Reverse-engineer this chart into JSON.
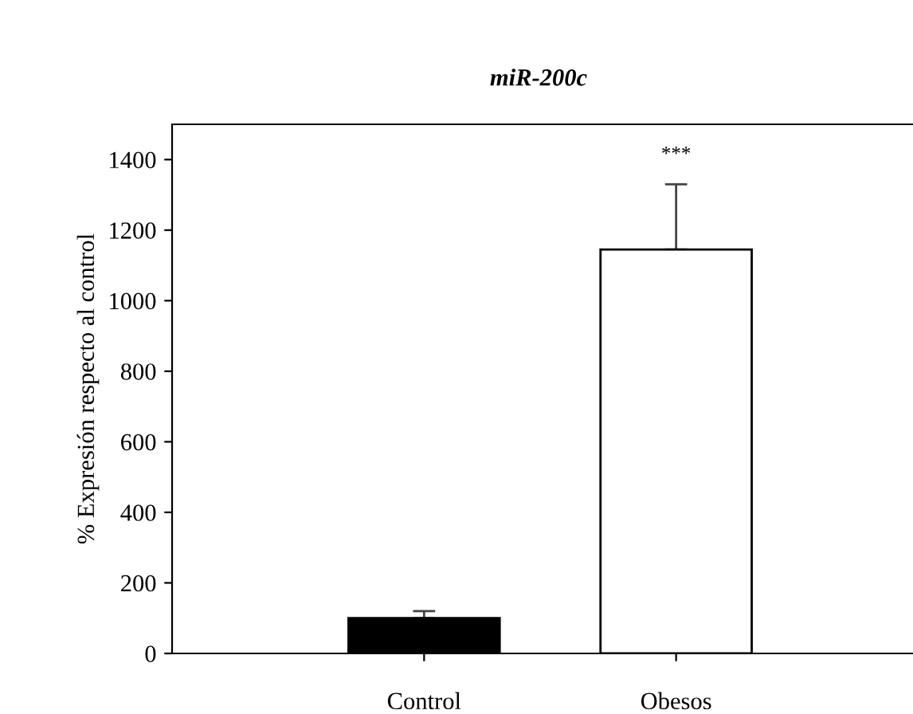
{
  "chart_data": {
    "type": "bar",
    "title": "miR-200c",
    "ylabel": "% Expresión respecto al control",
    "categories": [
      "Control",
      "Obesos"
    ],
    "values": [
      100,
      1145
    ],
    "errors": [
      20,
      185
    ],
    "colors": [
      "#000000",
      "#ffffff"
    ],
    "ylim": [
      0,
      1500
    ],
    "yticks": [
      0,
      200,
      400,
      600,
      800,
      1000,
      1200,
      1400
    ],
    "grid": false,
    "legend": false,
    "annotations": [
      "***"
    ]
  }
}
